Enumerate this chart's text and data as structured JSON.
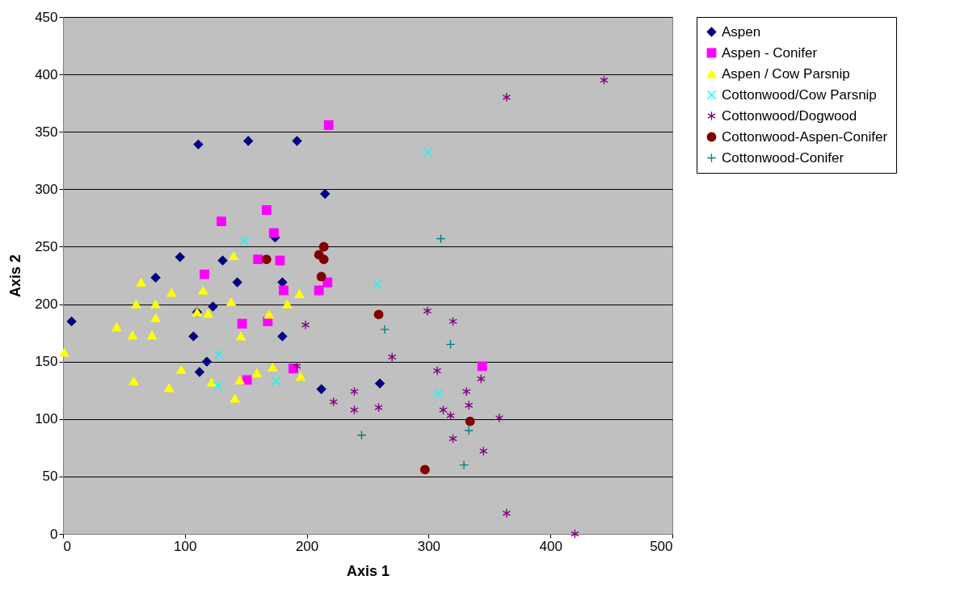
{
  "chart_data": {
    "type": "scatter",
    "xlabel": "Axis 1",
    "ylabel": "Axis 2",
    "xlim": [
      0,
      500
    ],
    "xticks": [
      0,
      100,
      200,
      300,
      400,
      500
    ],
    "ylim": [
      0,
      450
    ],
    "yticks": [
      0,
      50,
      100,
      150,
      200,
      250,
      300,
      350,
      400,
      450
    ],
    "grid": "y",
    "legend": "top right",
    "series": [
      {
        "name": "Aspen",
        "color": "#000080",
        "marker": "diamond",
        "x": [
          7,
          111,
          152,
          192,
          215,
          174,
          96,
          76,
          131,
          143,
          180,
          123,
          107,
          180,
          118,
          112,
          260,
          212,
          110
        ],
        "values": [
          185,
          339,
          342,
          342,
          296,
          258,
          241,
          223,
          238,
          219,
          219,
          198,
          172,
          172,
          150,
          141,
          131,
          126,
          193
        ]
      },
      {
        "name": "Aspen - Conifer",
        "color": "#ff00ff",
        "marker": "square",
        "x": [
          218,
          130,
          167,
          173,
          160,
          178,
          116,
          181,
          210,
          217,
          147,
          168,
          189,
          151,
          344
        ],
        "values": [
          356,
          272,
          282,
          262,
          239,
          238,
          226,
          212,
          212,
          219,
          183,
          185,
          144,
          134,
          146
        ]
      },
      {
        "name": "Aspen / Cow Parsnip",
        "color": "#ffff00",
        "marker": "triangle",
        "x": [
          1,
          44,
          57,
          73,
          64,
          60,
          76,
          76,
          89,
          58,
          87,
          97,
          115,
          110,
          119,
          122,
          140,
          138,
          146,
          145,
          141,
          159,
          172,
          169,
          184,
          194,
          195
        ],
        "values": [
          158,
          180,
          173,
          173,
          219,
          200,
          200,
          188,
          210,
          133,
          127,
          143,
          212,
          193,
          192,
          132,
          242,
          202,
          172,
          134,
          118,
          140,
          145,
          191,
          200,
          209,
          137
        ]
      },
      {
        "name": "Cottonwood/Cow Parsnip",
        "color": "#00ffff",
        "x": [
          149,
          128,
          127,
          175,
          258,
          299,
          308
        ],
        "values": [
          255,
          156,
          129,
          133,
          217,
          332,
          122
        ]
      },
      {
        "name": "Cottonwood/Dogwood",
        "color": "#800080",
        "x": [
          444,
          364,
          199,
          192,
          299,
          320,
          270,
          307,
          343,
          222,
          239,
          239,
          259,
          312,
          318,
          331,
          333,
          320,
          358,
          345,
          364,
          420
        ],
        "values": [
          395,
          380,
          182,
          146,
          194,
          185,
          154,
          142,
          135,
          115,
          124,
          108,
          110,
          108,
          103,
          124,
          112,
          83,
          101,
          72,
          18,
          0
        ]
      },
      {
        "name": "Cottonwood-Aspen-Conifer",
        "color": "#800000",
        "marker": "circle",
        "x": [
          214,
          210,
          214,
          212,
          167,
          259,
          297,
          334
        ],
        "values": [
          250,
          243,
          239,
          224,
          239,
          191,
          56,
          98
        ]
      },
      {
        "name": "Cottonwood-Conifer",
        "color": "#008080",
        "x": [
          310,
          264,
          318,
          245,
          333,
          329
        ],
        "values": [
          257,
          178,
          165,
          86,
          90,
          60
        ]
      }
    ]
  }
}
